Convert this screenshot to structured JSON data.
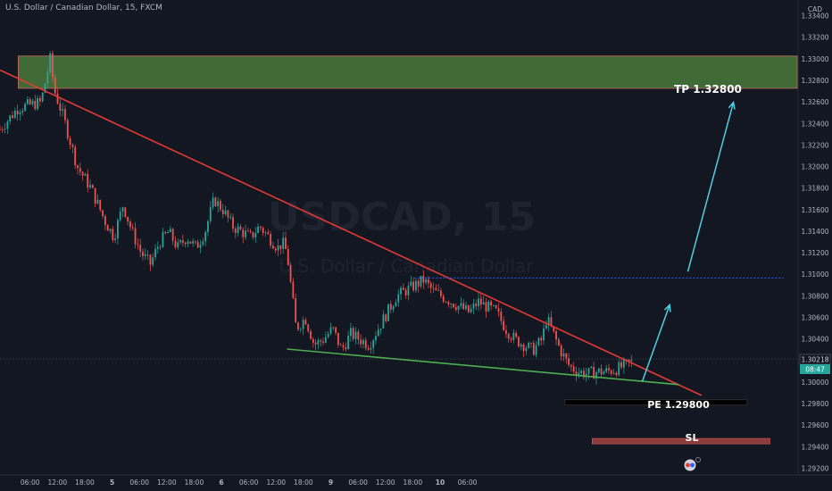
{
  "header": {
    "title": "U.S. Dollar / Canadian Dollar, 15, FXCM"
  },
  "watermark": {
    "symbol": "USDCAD, 15",
    "description": "U.S. Dollar / Canadian Dollar"
  },
  "price_axis": {
    "currency": "CAD",
    "ticks": [
      "1.33400",
      "1.33200",
      "1.33000",
      "1.32800",
      "1.32600",
      "1.32400",
      "1.32200",
      "1.32000",
      "1.31800",
      "1.31600",
      "1.31400",
      "1.31200",
      "1.31000",
      "1.30800",
      "1.30600",
      "1.30400",
      "1.30200",
      "1.30000",
      "1.29800",
      "1.29600",
      "1.29400",
      "1.29200"
    ],
    "last_price": "1.30218",
    "countdown": "08:47"
  },
  "time_axis": {
    "ticks": [
      "06:00",
      "12:00",
      "18:00",
      "5",
      "06:00",
      "12:00",
      "18:00",
      "6",
      "06:00",
      "12:00",
      "18:00",
      "9",
      "06:00",
      "12:00",
      "18:00",
      "10",
      "06:00"
    ]
  },
  "labels": {
    "tp": "TP 1.32800",
    "pe": "PE 1.29800",
    "sl": "SL"
  },
  "colors": {
    "up": "#26a69a",
    "down": "#ef5350",
    "trend_upper": "#e53935",
    "trend_lower": "#4caf50",
    "arrow": "#4dd0e1",
    "tp_zone": "#4a7a3a",
    "sl_zone": "#8c3b3b",
    "pe_box": "#000000",
    "dotted_level": "#2962ff"
  },
  "chart_data": {
    "type": "candlestick",
    "title": "U.S. Dollar / Canadian Dollar, 15, FXCM",
    "ylim": [
      1.2915,
      1.3355
    ],
    "x_range_hours": [
      -7,
      168
    ],
    "price_path": [
      [
        -7,
        1.3235
      ],
      [
        -3,
        1.3255
      ],
      [
        2,
        1.326
      ],
      [
        4,
        1.33
      ],
      [
        5,
        1.327
      ],
      [
        7,
        1.3245
      ],
      [
        10,
        1.32
      ],
      [
        13,
        1.318
      ],
      [
        16,
        1.315
      ],
      [
        18,
        1.3135
      ],
      [
        20,
        1.3165
      ],
      [
        22,
        1.314
      ],
      [
        24,
        1.312
      ],
      [
        26,
        1.311
      ],
      [
        28,
        1.313
      ],
      [
        30,
        1.314
      ],
      [
        32,
        1.3125
      ],
      [
        34,
        1.3135
      ],
      [
        36,
        1.3125
      ],
      [
        38,
        1.314
      ],
      [
        40,
        1.317
      ],
      [
        42,
        1.316
      ],
      [
        44,
        1.3145
      ],
      [
        46,
        1.314
      ],
      [
        48,
        1.3135
      ],
      [
        50,
        1.3145
      ],
      [
        52,
        1.3135
      ],
      [
        54,
        1.3125
      ],
      [
        55,
        1.313
      ],
      [
        56,
        1.312
      ],
      [
        58,
        1.305
      ],
      [
        60,
        1.306
      ],
      [
        62,
        1.3035
      ],
      [
        64,
        1.304
      ],
      [
        66,
        1.305
      ],
      [
        68,
        1.303
      ],
      [
        70,
        1.3045
      ],
      [
        72,
        1.304
      ],
      [
        74,
        1.3035
      ],
      [
        76,
        1.305
      ],
      [
        78,
        1.3065
      ],
      [
        80,
        1.308
      ],
      [
        82,
        1.3085
      ],
      [
        84,
        1.309
      ],
      [
        86,
        1.3095
      ],
      [
        88,
        1.3085
      ],
      [
        90,
        1.308
      ],
      [
        92,
        1.3075
      ],
      [
        94,
        1.307
      ],
      [
        96,
        1.3065
      ],
      [
        98,
        1.3075
      ],
      [
        100,
        1.307
      ],
      [
        102,
        1.3065
      ],
      [
        104,
        1.305
      ],
      [
        106,
        1.304
      ],
      [
        108,
        1.3035
      ],
      [
        110,
        1.303
      ],
      [
        112,
        1.304
      ],
      [
        113,
        1.306
      ],
      [
        114,
        1.305
      ],
      [
        116,
        1.303
      ],
      [
        118,
        1.3015
      ],
      [
        120,
        1.301
      ],
      [
        122,
        1.3008
      ],
      [
        124,
        1.301
      ],
      [
        126,
        1.301
      ],
      [
        128,
        1.3012
      ],
      [
        130,
        1.3015
      ],
      [
        132,
        1.302
      ]
    ],
    "trendlines": [
      {
        "name": "upper",
        "from": [
          -7,
          1.329
        ],
        "to": [
          147,
          1.2988
        ]
      },
      {
        "name": "lower",
        "from": [
          56,
          1.3031
        ],
        "to": [
          142,
          1.2998
        ]
      }
    ],
    "zones": [
      {
        "name": "take-profit",
        "label": "TP 1.32800",
        "x": [
          -3,
          168
        ],
        "y": [
          1.3273,
          1.3303
        ]
      },
      {
        "name": "stop-loss",
        "label": "SL",
        "x": [
          123,
          162
        ],
        "y": [
          1.2943,
          1.2948
        ]
      }
    ],
    "entry": {
      "label": "PE 1.29800",
      "x": [
        117,
        157
      ],
      "y": [
        1.2979,
        1.2984
      ]
    },
    "dotted_level": {
      "x": [
        84,
        165
      ],
      "y": 1.3097
    },
    "arrows": [
      {
        "from": [
          134,
          1.3001
        ],
        "to": [
          140,
          1.3072
        ]
      },
      {
        "from": [
          144,
          1.3103
        ],
        "to": [
          154,
          1.326
        ]
      }
    ],
    "last_price": 1.30218
  }
}
